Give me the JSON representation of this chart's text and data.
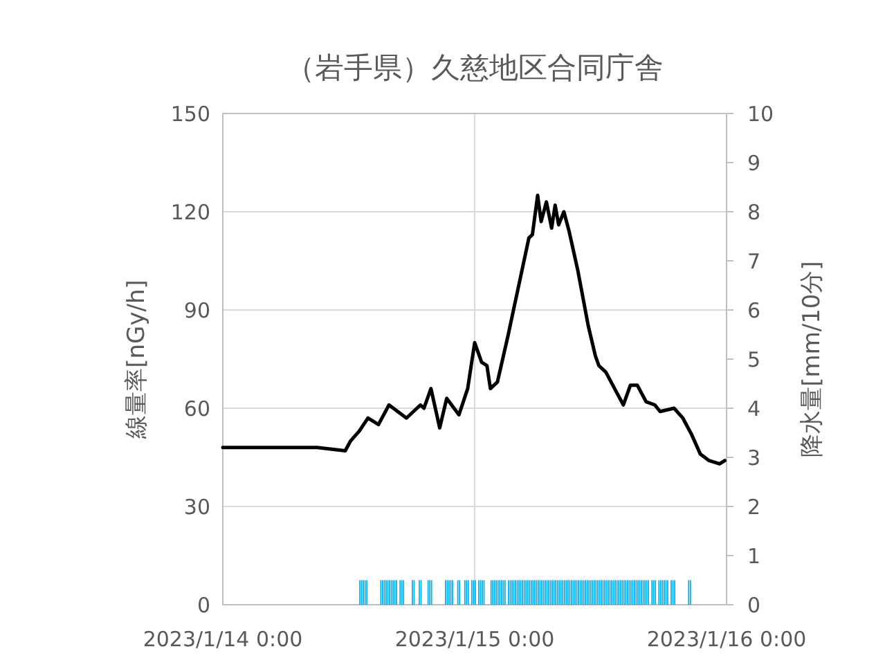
{
  "chart_data": {
    "type": "line",
    "title": "（岩手県）久慈地区合同庁舎",
    "ylabel": "線量率[nGy/h]",
    "y2label": "降水量[mm/10分]",
    "xlim": [
      "2023-01-14T00:00",
      "2023-01-16T00:00"
    ],
    "xticks": [
      {
        "value": "2023-01-14T00:00",
        "label": "2023/1/14 0:00"
      },
      {
        "value": "2023-01-15T00:00",
        "label": "2023/1/15 0:00"
      },
      {
        "value": "2023-01-16T00:00",
        "label": "2023/1/16 0:00"
      }
    ],
    "ylim": [
      0,
      150
    ],
    "yticks": [
      0,
      30,
      60,
      90,
      120,
      150
    ],
    "y2lim": [
      0,
      10
    ],
    "y2ticks": [
      0,
      1,
      2,
      3,
      4,
      5,
      6,
      7,
      8,
      9,
      10
    ],
    "grid": true,
    "series": [
      {
        "type": "bar",
        "axis": "y2",
        "color": "#00b0f0",
        "x": [
          "2023-01-14T13:00",
          "2023-01-14T13:10",
          "2023-01-14T13:20",
          "2023-01-14T13:30",
          "2023-01-14T13:40",
          "2023-01-14T15:00",
          "2023-01-14T15:10",
          "2023-01-14T15:20",
          "2023-01-14T15:30",
          "2023-01-14T15:40",
          "2023-01-14T15:50",
          "2023-01-14T16:00",
          "2023-01-14T16:10",
          "2023-01-14T16:20",
          "2023-01-14T16:30",
          "2023-01-14T16:50",
          "2023-01-14T17:00",
          "2023-01-14T17:10",
          "2023-01-14T18:00",
          "2023-01-14T18:10",
          "2023-01-14T18:40",
          "2023-01-14T18:50",
          "2023-01-14T19:30",
          "2023-01-14T19:40",
          "2023-01-14T19:50",
          "2023-01-14T21:10",
          "2023-01-14T21:20",
          "2023-01-14T21:30",
          "2023-01-14T21:40",
          "2023-01-14T21:50",
          "2023-01-14T22:20",
          "2023-01-14T22:30",
          "2023-01-14T23:00",
          "2023-01-14T23:10",
          "2023-01-14T23:20",
          "2023-01-14T23:40",
          "2023-01-14T23:50",
          "2023-01-15T00:00",
          "2023-01-15T00:20",
          "2023-01-15T00:30",
          "2023-01-15T00:40",
          "2023-01-15T00:50",
          "2023-01-15T01:30",
          "2023-01-15T01:40",
          "2023-01-15T01:50",
          "2023-01-15T02:00",
          "2023-01-15T02:10",
          "2023-01-15T02:20",
          "2023-01-15T02:30",
          "2023-01-15T02:40",
          "2023-01-15T02:50",
          "2023-01-15T03:10",
          "2023-01-15T03:20",
          "2023-01-15T03:30",
          "2023-01-15T03:40",
          "2023-01-15T03:50",
          "2023-01-15T04:00",
          "2023-01-15T04:10",
          "2023-01-15T04:20",
          "2023-01-15T04:30",
          "2023-01-15T04:40",
          "2023-01-15T04:50",
          "2023-01-15T05:00",
          "2023-01-15T05:10",
          "2023-01-15T05:20",
          "2023-01-15T05:30",
          "2023-01-15T05:40",
          "2023-01-15T05:50",
          "2023-01-15T06:00",
          "2023-01-15T06:10",
          "2023-01-15T06:20",
          "2023-01-15T06:30",
          "2023-01-15T06:40",
          "2023-01-15T06:50",
          "2023-01-15T07:00",
          "2023-01-15T07:10",
          "2023-01-15T07:20",
          "2023-01-15T07:30",
          "2023-01-15T07:40",
          "2023-01-15T07:50",
          "2023-01-15T08:00",
          "2023-01-15T08:10",
          "2023-01-15T08:20",
          "2023-01-15T08:30",
          "2023-01-15T08:40",
          "2023-01-15T08:50",
          "2023-01-15T09:00",
          "2023-01-15T09:10",
          "2023-01-15T09:20",
          "2023-01-15T09:30",
          "2023-01-15T09:40",
          "2023-01-15T09:50",
          "2023-01-15T10:00",
          "2023-01-15T10:10",
          "2023-01-15T10:20",
          "2023-01-15T10:30",
          "2023-01-15T10:40",
          "2023-01-15T10:50",
          "2023-01-15T11:00",
          "2023-01-15T11:10",
          "2023-01-15T11:20",
          "2023-01-15T11:30",
          "2023-01-15T11:40",
          "2023-01-15T11:50",
          "2023-01-15T12:00",
          "2023-01-15T12:10",
          "2023-01-15T12:20",
          "2023-01-15T12:30",
          "2023-01-15T12:40",
          "2023-01-15T12:50",
          "2023-01-15T13:00",
          "2023-01-15T13:10",
          "2023-01-15T13:20",
          "2023-01-15T13:30",
          "2023-01-15T13:40",
          "2023-01-15T13:50",
          "2023-01-15T14:00",
          "2023-01-15T14:10",
          "2023-01-15T14:20",
          "2023-01-15T14:30",
          "2023-01-15T14:40",
          "2023-01-15T14:50",
          "2023-01-15T15:00",
          "2023-01-15T15:10",
          "2023-01-15T15:20",
          "2023-01-15T15:30",
          "2023-01-15T15:40",
          "2023-01-15T15:50",
          "2023-01-15T16:00",
          "2023-01-15T16:10",
          "2023-01-15T16:20",
          "2023-01-15T16:30",
          "2023-01-15T16:50",
          "2023-01-15T17:00",
          "2023-01-15T17:10",
          "2023-01-15T17:30",
          "2023-01-15T17:40",
          "2023-01-15T17:50",
          "2023-01-15T18:00",
          "2023-01-15T18:10",
          "2023-01-15T18:20",
          "2023-01-15T18:40",
          "2023-01-15T18:50",
          "2023-01-15T19:00",
          "2023-01-15T20:20",
          "2023-01-15T20:30"
        ],
        "values": [
          0.5,
          0.5,
          0.5,
          0.5,
          0.5,
          0.5,
          0.5,
          0.5,
          0.5,
          0.5,
          0.5,
          0.5,
          0.5,
          0.5,
          0.5,
          0.5,
          0.5,
          0.5,
          0.5,
          0.5,
          0.5,
          0.5,
          0.5,
          0.5,
          0.5,
          0.5,
          0.5,
          0.5,
          0.5,
          0.5,
          0.5,
          0.5,
          0.5,
          0.5,
          0.5,
          0.5,
          0.5,
          0.5,
          0.5,
          0.5,
          0.5,
          0.5,
          0.5,
          0.5,
          0.5,
          0.5,
          0.5,
          0.5,
          0.5,
          0.5,
          0.5,
          0.5,
          0.5,
          0.5,
          0.5,
          0.5,
          0.5,
          0.5,
          0.5,
          0.5,
          0.5,
          0.5,
          0.5,
          0.5,
          0.5,
          0.5,
          0.5,
          0.5,
          0.5,
          0.5,
          0.5,
          0.5,
          0.5,
          0.5,
          0.5,
          0.5,
          0.5,
          0.5,
          0.5,
          0.5,
          0.5,
          0.5,
          0.5,
          0.5,
          0.5,
          0.5,
          0.5,
          0.5,
          0.5,
          0.5,
          0.5,
          0.5,
          0.5,
          0.5,
          0.5,
          0.5,
          0.5,
          0.5,
          0.5,
          0.5,
          0.5,
          0.5,
          0.5,
          0.5,
          0.5,
          0.5,
          0.5,
          0.5,
          0.5,
          0.5,
          0.5,
          0.5,
          0.5,
          0.5,
          0.5,
          0.5,
          0.5,
          0.5,
          0.5,
          0.5,
          0.5,
          0.5,
          0.5,
          0.5,
          0.5,
          0.5,
          0.5,
          0.5,
          0.5,
          0.5,
          0.5,
          0.5,
          0.5,
          0.5,
          0.5,
          0.5,
          0.5,
          0.5,
          0.5,
          0.5,
          0.5,
          0.5,
          0.5,
          0.5,
          0.5,
          0.5
        ]
      },
      {
        "color": "#000000",
        "x": [
          "2023-01-14T00:00",
          "2023-01-14T02:00",
          "2023-01-14T05:00",
          "2023-01-14T09:00",
          "2023-01-14T11:40",
          "2023-01-14T12:10",
          "2023-01-14T13:00",
          "2023-01-14T13:50",
          "2023-01-14T14:50",
          "2023-01-14T15:50",
          "2023-01-14T17:30",
          "2023-01-14T18:50",
          "2023-01-14T19:10",
          "2023-01-14T19:50",
          "2023-01-14T20:40",
          "2023-01-14T21:20",
          "2023-01-14T22:30",
          "2023-01-14T23:20",
          "2023-01-15T00:00",
          "2023-01-15T00:40",
          "2023-01-15T01:10",
          "2023-01-15T01:30",
          "2023-01-15T02:10",
          "2023-01-15T03:10",
          "2023-01-15T03:50",
          "2023-01-15T04:30",
          "2023-01-15T05:10",
          "2023-01-15T05:30",
          "2023-01-15T06:00",
          "2023-01-15T06:20",
          "2023-01-15T06:50",
          "2023-01-15T07:20",
          "2023-01-15T07:40",
          "2023-01-15T08:00",
          "2023-01-15T08:30",
          "2023-01-15T09:00",
          "2023-01-15T09:50",
          "2023-01-15T10:50",
          "2023-01-15T11:30",
          "2023-01-15T11:50",
          "2023-01-15T12:30",
          "2023-01-15T13:30",
          "2023-01-15T14:10",
          "2023-01-15T14:50",
          "2023-01-15T15:30",
          "2023-01-15T16:20",
          "2023-01-15T17:10",
          "2023-01-15T17:40",
          "2023-01-15T19:00",
          "2023-01-15T19:50",
          "2023-01-15T20:40",
          "2023-01-15T21:30",
          "2023-01-15T22:20",
          "2023-01-15T23:20",
          "2023-01-15T23:50"
        ],
        "values": [
          48,
          48,
          48,
          48,
          47,
          50,
          53,
          57,
          55,
          61,
          57,
          61,
          60,
          66,
          54,
          63,
          58,
          66,
          80,
          74,
          73,
          66,
          68,
          82,
          92,
          102,
          112,
          113,
          125,
          117,
          123,
          115,
          122,
          116,
          120,
          114,
          102,
          85,
          76,
          73,
          71,
          65,
          61,
          67,
          67,
          62,
          61,
          59,
          60,
          57,
          52,
          46,
          44,
          43,
          44
        ]
      }
    ]
  }
}
